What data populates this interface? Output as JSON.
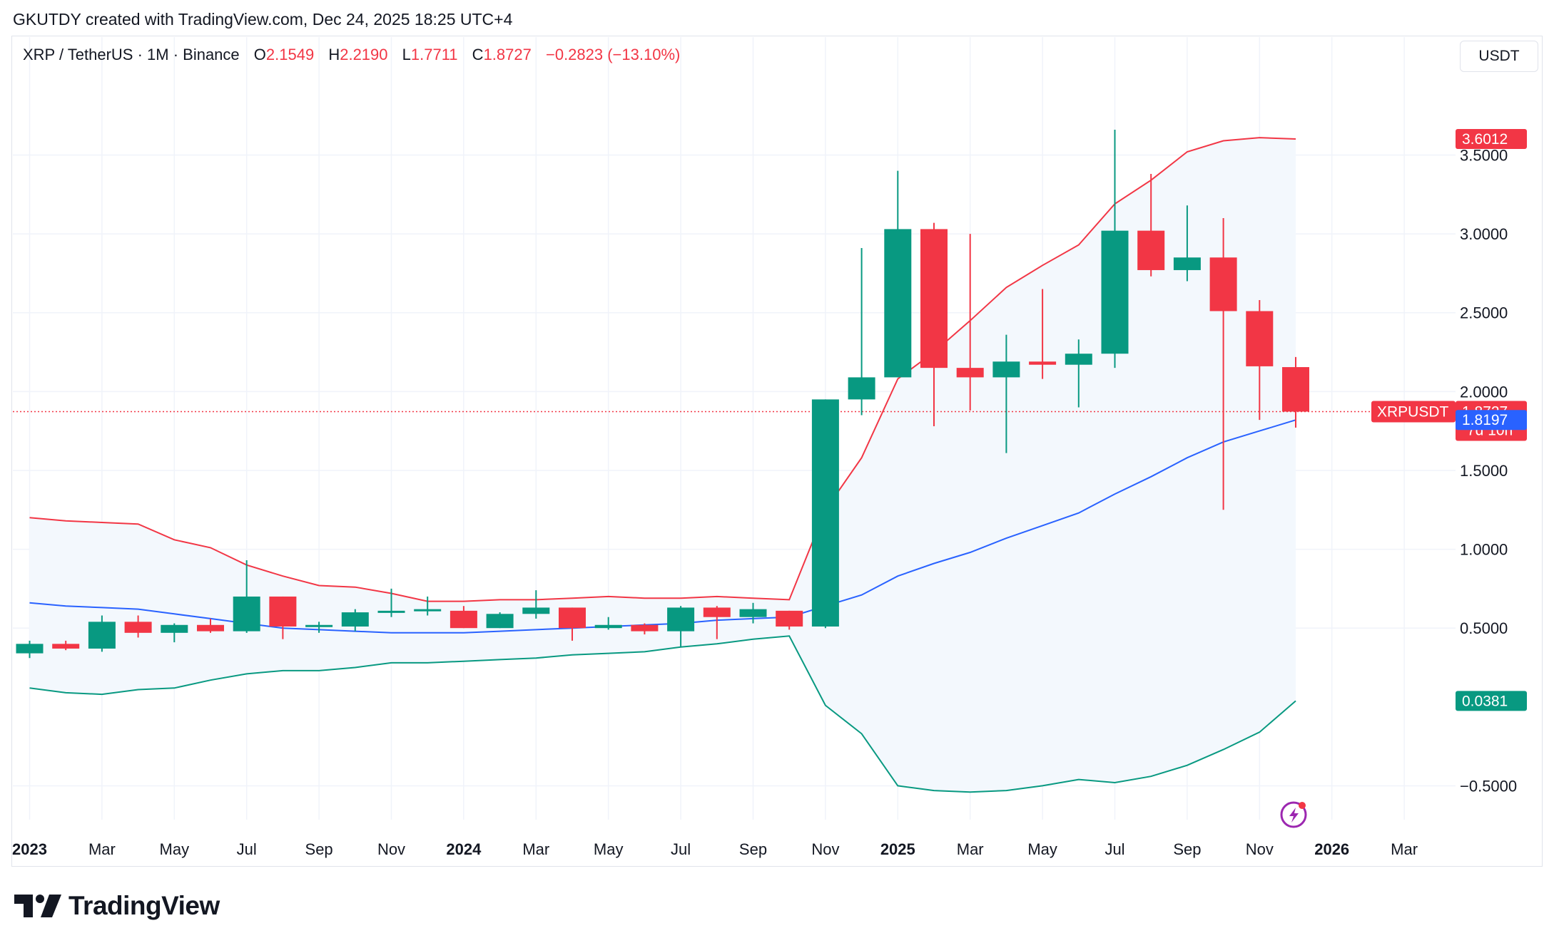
{
  "header": {
    "attribution": "GKUTDY created with TradingView.com, Dec 24, 2025 18:25 UTC+4"
  },
  "legend": {
    "symbol": "XRP / TetherUS · 1M · Binance",
    "o_label": "O",
    "o_value": "2.1549",
    "h_label": "H",
    "h_value": "2.2190",
    "l_label": "L",
    "l_value": "1.7711",
    "c_label": "C",
    "c_value": "1.8727",
    "change": "−0.2823 (−13.10%)"
  },
  "currency_button": "USDT",
  "footer": {
    "brand": "TradingView"
  },
  "badges": {
    "upper_band": "3.6012",
    "symbol_tag": "XRPUSDT",
    "last_price": "1.8727",
    "countdown": "7d 10h",
    "middle_band": "1.8197",
    "lower_band": "0.0381"
  },
  "colors": {
    "up": "#089981",
    "down": "#f23645",
    "upper_band": "#f23645",
    "middle_band": "#2962ff",
    "lower_band": "#089981",
    "band_fill": "#f3f8fd",
    "grid": "#f0f3fa",
    "price_line": "#f23645",
    "middle_badge": "#2962ff"
  },
  "chart_data": {
    "type": "candlestick",
    "interval": "1M",
    "y_axis": {
      "ticks": [
        "3.5000",
        "3.0000",
        "2.5000",
        "2.0000",
        "1.5000",
        "1.0000",
        "0.5000",
        "−0.5000"
      ],
      "tick_values": [
        3.5,
        3.0,
        2.5,
        2.0,
        1.5,
        1.0,
        0.5,
        -0.5
      ],
      "range": [
        -0.62,
        3.85
      ]
    },
    "x_axis": {
      "labels": [
        "2023",
        "Mar",
        "May",
        "Jul",
        "Sep",
        "Nov",
        "2024",
        "Mar",
        "May",
        "Jul",
        "Sep",
        "Nov",
        "2025",
        "Mar",
        "May",
        "Jul",
        "Sep",
        "Nov",
        "2026",
        "Mar"
      ],
      "label_dates": [
        "2023-01",
        "2023-03",
        "2023-05",
        "2023-07",
        "2023-09",
        "2023-11",
        "2024-01",
        "2024-03",
        "2024-05",
        "2024-07",
        "2024-09",
        "2024-11",
        "2025-01",
        "2025-03",
        "2025-05",
        "2025-07",
        "2025-09",
        "2025-11",
        "2026-01",
        "2026-03"
      ],
      "year_labels": [
        "2023",
        "2024",
        "2025",
        "2026"
      ]
    },
    "candles": [
      {
        "date": "2023-01",
        "o": 0.34,
        "h": 0.42,
        "l": 0.31,
        "c": 0.4
      },
      {
        "date": "2023-02",
        "o": 0.4,
        "h": 0.42,
        "l": 0.36,
        "c": 0.37
      },
      {
        "date": "2023-03",
        "o": 0.37,
        "h": 0.58,
        "l": 0.35,
        "c": 0.54
      },
      {
        "date": "2023-04",
        "o": 0.54,
        "h": 0.58,
        "l": 0.44,
        "c": 0.47
      },
      {
        "date": "2023-05",
        "o": 0.47,
        "h": 0.53,
        "l": 0.41,
        "c": 0.52
      },
      {
        "date": "2023-06",
        "o": 0.52,
        "h": 0.56,
        "l": 0.47,
        "c": 0.48
      },
      {
        "date": "2023-07",
        "o": 0.48,
        "h": 0.93,
        "l": 0.47,
        "c": 0.7
      },
      {
        "date": "2023-08",
        "o": 0.7,
        "h": 0.7,
        "l": 0.43,
        "c": 0.51
      },
      {
        "date": "2023-09",
        "o": 0.51,
        "h": 0.54,
        "l": 0.47,
        "c": 0.52
      },
      {
        "date": "2023-10",
        "o": 0.51,
        "h": 0.62,
        "l": 0.48,
        "c": 0.6
      },
      {
        "date": "2023-11",
        "o": 0.6,
        "h": 0.75,
        "l": 0.57,
        "c": 0.61
      },
      {
        "date": "2023-12",
        "o": 0.61,
        "h": 0.7,
        "l": 0.58,
        "c": 0.62
      },
      {
        "date": "2024-01",
        "o": 0.61,
        "h": 0.64,
        "l": 0.5,
        "c": 0.5
      },
      {
        "date": "2024-02",
        "o": 0.5,
        "h": 0.6,
        "l": 0.5,
        "c": 0.59
      },
      {
        "date": "2024-03",
        "o": 0.59,
        "h": 0.74,
        "l": 0.56,
        "c": 0.63
      },
      {
        "date": "2024-04",
        "o": 0.63,
        "h": 0.63,
        "l": 0.42,
        "c": 0.5
      },
      {
        "date": "2024-05",
        "o": 0.5,
        "h": 0.57,
        "l": 0.49,
        "c": 0.52
      },
      {
        "date": "2024-06",
        "o": 0.52,
        "h": 0.53,
        "l": 0.46,
        "c": 0.48
      },
      {
        "date": "2024-07",
        "o": 0.48,
        "h": 0.64,
        "l": 0.38,
        "c": 0.63
      },
      {
        "date": "2024-08",
        "o": 0.63,
        "h": 0.64,
        "l": 0.43,
        "c": 0.57
      },
      {
        "date": "2024-09",
        "o": 0.57,
        "h": 0.66,
        "l": 0.53,
        "c": 0.62
      },
      {
        "date": "2024-10",
        "o": 0.61,
        "h": 0.61,
        "l": 0.49,
        "c": 0.51
      },
      {
        "date": "2024-11",
        "o": 0.51,
        "h": 1.95,
        "l": 0.5,
        "c": 1.95
      },
      {
        "date": "2024-12",
        "o": 1.95,
        "h": 2.91,
        "l": 1.85,
        "c": 2.09
      },
      {
        "date": "2025-01",
        "o": 2.09,
        "h": 3.4,
        "l": 2.09,
        "c": 3.03
      },
      {
        "date": "2025-02",
        "o": 3.03,
        "h": 3.07,
        "l": 1.78,
        "c": 2.15
      },
      {
        "date": "2025-03",
        "o": 2.15,
        "h": 3.0,
        "l": 1.88,
        "c": 2.09
      },
      {
        "date": "2025-04",
        "o": 2.09,
        "h": 2.36,
        "l": 1.61,
        "c": 2.19
      },
      {
        "date": "2025-05",
        "o": 2.19,
        "h": 2.65,
        "l": 2.08,
        "c": 2.17
      },
      {
        "date": "2025-06",
        "o": 2.17,
        "h": 2.33,
        "l": 1.9,
        "c": 2.24
      },
      {
        "date": "2025-07",
        "o": 2.24,
        "h": 3.66,
        "l": 2.15,
        "c": 3.02
      },
      {
        "date": "2025-08",
        "o": 3.02,
        "h": 3.38,
        "l": 2.73,
        "c": 2.77
      },
      {
        "date": "2025-09",
        "o": 2.77,
        "h": 3.18,
        "l": 2.7,
        "c": 2.85
      },
      {
        "date": "2025-10",
        "o": 2.85,
        "h": 3.1,
        "l": 1.25,
        "c": 2.51
      },
      {
        "date": "2025-11",
        "o": 2.51,
        "h": 2.58,
        "l": 1.82,
        "c": 2.16
      },
      {
        "date": "2025-12",
        "o": 2.1549,
        "h": 2.219,
        "l": 1.7711,
        "c": 1.8727
      }
    ],
    "bollinger": {
      "upper": [
        1.2,
        1.18,
        1.17,
        1.16,
        1.06,
        1.01,
        0.9,
        0.83,
        0.77,
        0.76,
        0.72,
        0.67,
        0.67,
        0.68,
        0.68,
        0.69,
        0.7,
        0.69,
        0.69,
        0.7,
        0.69,
        0.68,
        1.25,
        1.58,
        2.08,
        2.25,
        2.45,
        2.66,
        2.8,
        2.93,
        3.19,
        3.34,
        3.52,
        3.59,
        3.61,
        3.6012
      ],
      "middle": [
        0.66,
        0.64,
        0.63,
        0.62,
        0.59,
        0.56,
        0.53,
        0.5,
        0.49,
        0.48,
        0.47,
        0.47,
        0.47,
        0.48,
        0.49,
        0.5,
        0.51,
        0.52,
        0.53,
        0.55,
        0.56,
        0.57,
        0.64,
        0.71,
        0.83,
        0.91,
        0.98,
        1.07,
        1.15,
        1.23,
        1.35,
        1.46,
        1.58,
        1.68,
        1.75,
        1.8197
      ],
      "lower": [
        0.12,
        0.09,
        0.08,
        0.11,
        0.12,
        0.17,
        0.21,
        0.23,
        0.23,
        0.25,
        0.28,
        0.28,
        0.29,
        0.3,
        0.31,
        0.33,
        0.34,
        0.35,
        0.38,
        0.4,
        0.43,
        0.45,
        0.01,
        -0.17,
        -0.5,
        -0.53,
        -0.54,
        -0.53,
        -0.5,
        -0.46,
        -0.48,
        -0.44,
        -0.37,
        -0.27,
        -0.16,
        0.0381
      ]
    },
    "last_price": 1.8727
  }
}
